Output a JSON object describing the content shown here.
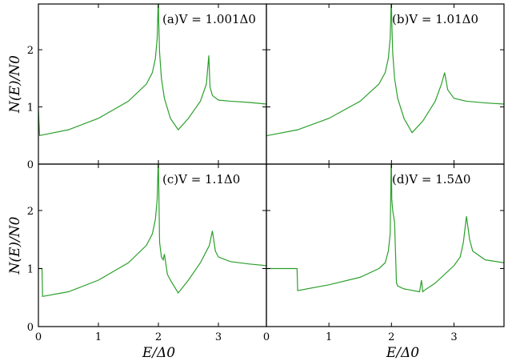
{
  "chart_data": [
    {
      "type": "line",
      "panel": "a",
      "label": "(a)V = 1.001Δ0",
      "xlabel": "",
      "ylabel": "N(E)/N0",
      "xlim": [
        0,
        3.8
      ],
      "ylim": [
        0,
        2.8
      ],
      "color": "#2ca02c",
      "series": [
        {
          "x": [
            0,
            0.02,
            0.5,
            1.0,
            1.5,
            1.8,
            1.9,
            1.95,
            1.98,
            1.995,
            2.0,
            2.005,
            2.02,
            2.05,
            2.1,
            2.2,
            2.33,
            2.5,
            2.7,
            2.8,
            2.84,
            2.86,
            2.9,
            3.0,
            3.2,
            3.5,
            3.8
          ],
          "y": [
            0.95,
            0.5,
            0.6,
            0.8,
            1.1,
            1.4,
            1.6,
            1.85,
            2.2,
            2.8,
            2.8,
            2.5,
            1.95,
            1.5,
            1.15,
            0.8,
            0.6,
            0.8,
            1.1,
            1.4,
            1.9,
            1.35,
            1.2,
            1.12,
            1.1,
            1.08,
            1.05
          ]
        }
      ]
    },
    {
      "type": "line",
      "panel": "b",
      "label": "(b)V = 1.01Δ0",
      "xlabel": "",
      "ylabel": "",
      "xlim": [
        0,
        3.8
      ],
      "ylim": [
        0,
        2.8
      ],
      "color": "#2ca02c",
      "series": [
        {
          "x": [
            0,
            0.02,
            0.5,
            1.0,
            1.5,
            1.8,
            1.9,
            1.95,
            1.98,
            1.995,
            2.0,
            2.005,
            2.02,
            2.05,
            2.1,
            2.2,
            2.33,
            2.5,
            2.7,
            2.8,
            2.85,
            2.9,
            3.0,
            3.2,
            3.5,
            3.8
          ],
          "y": [
            0.5,
            0.5,
            0.6,
            0.8,
            1.1,
            1.4,
            1.6,
            1.85,
            2.2,
            2.8,
            2.8,
            2.5,
            1.95,
            1.5,
            1.15,
            0.8,
            0.55,
            0.75,
            1.1,
            1.4,
            1.6,
            1.3,
            1.15,
            1.1,
            1.07,
            1.05
          ]
        }
      ]
    },
    {
      "type": "line",
      "panel": "c",
      "label": "(c)V = 1.1Δ0",
      "xlabel": "E/Δ0",
      "ylabel": "N(E)/N0",
      "xlim": [
        0,
        3.8
      ],
      "ylim": [
        0,
        2.8
      ],
      "color": "#2ca02c",
      "series": [
        {
          "x": [
            0,
            0.06,
            0.07,
            0.5,
            1.0,
            1.5,
            1.8,
            1.9,
            1.95,
            1.98,
            1.995,
            2.0,
            2.005,
            2.02,
            2.05,
            2.08,
            2.1,
            2.15,
            2.2,
            2.33,
            2.5,
            2.7,
            2.85,
            2.9,
            2.95,
            3.0,
            3.2,
            3.5,
            3.8
          ],
          "y": [
            1.0,
            1.0,
            0.52,
            0.6,
            0.8,
            1.1,
            1.4,
            1.6,
            1.85,
            2.2,
            2.8,
            2.8,
            2.5,
            1.45,
            1.2,
            1.15,
            1.25,
            0.9,
            0.8,
            0.58,
            0.8,
            1.1,
            1.4,
            1.65,
            1.3,
            1.2,
            1.12,
            1.08,
            1.05
          ]
        }
      ]
    },
    {
      "type": "line",
      "panel": "d",
      "label": "(d)V = 1.5Δ0",
      "xlabel": "E/Δ0",
      "ylabel": "",
      "xlim": [
        0,
        3.8
      ],
      "ylim": [
        0,
        2.8
      ],
      "color": "#2ca02c",
      "series": [
        {
          "x": [
            0,
            0.49,
            0.5,
            1.0,
            1.5,
            1.8,
            1.9,
            1.95,
            1.98,
            1.995,
            2.0,
            2.005,
            2.02,
            2.05,
            2.08,
            2.1,
            2.2,
            2.45,
            2.48,
            2.5,
            2.52,
            2.7,
            3.0,
            3.1,
            3.15,
            3.2,
            3.25,
            3.3,
            3.5,
            3.8
          ],
          "y": [
            1.0,
            1.0,
            0.62,
            0.72,
            0.85,
            1.0,
            1.1,
            1.3,
            1.6,
            2.8,
            2.8,
            2.2,
            2.0,
            1.8,
            0.75,
            0.7,
            0.65,
            0.6,
            0.8,
            0.6,
            0.62,
            0.75,
            1.05,
            1.2,
            1.45,
            1.9,
            1.5,
            1.3,
            1.15,
            1.1
          ]
        }
      ]
    }
  ],
  "yticks": [
    "0",
    "1",
    "2"
  ],
  "xticks": [
    "0",
    "1",
    "2",
    "3"
  ]
}
